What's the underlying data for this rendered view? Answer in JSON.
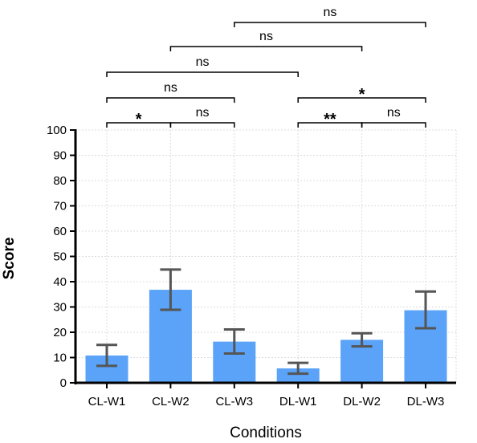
{
  "chart_data": {
    "type": "bar",
    "title": "",
    "xlabel": "Conditions",
    "ylabel": "Score",
    "categories": [
      "CL-W1",
      "CL-W2",
      "CL-W3",
      "DL-W1",
      "DL-W2",
      "DL-W3"
    ],
    "values": [
      10.8,
      36.8,
      16.3,
      5.7,
      17.0,
      28.7
    ],
    "error_low": [
      6.7,
      28.9,
      11.6,
      3.6,
      14.4,
      21.6
    ],
    "error_high": [
      15.0,
      44.8,
      21.1,
      7.9,
      19.6,
      36.1
    ],
    "ylim": [
      0,
      100
    ],
    "yticks": [
      0,
      10,
      20,
      30,
      40,
      50,
      60,
      70,
      80,
      90,
      100
    ],
    "grid": true,
    "bar_color": "#5aa3f8",
    "error_color": "#555555",
    "significance": [
      {
        "from": 0,
        "to": 1,
        "label": "*"
      },
      {
        "from": 1,
        "to": 2,
        "label": "ns"
      },
      {
        "from": 3,
        "to": 4,
        "label": "**"
      },
      {
        "from": 4,
        "to": 5,
        "label": "ns"
      },
      {
        "from": 0,
        "to": 2,
        "label": "ns"
      },
      {
        "from": 3,
        "to": 5,
        "label": "*"
      },
      {
        "from": 0,
        "to": 3,
        "label": "ns"
      },
      {
        "from": 1,
        "to": 4,
        "label": "ns"
      },
      {
        "from": 2,
        "to": 5,
        "label": "ns"
      }
    ]
  }
}
